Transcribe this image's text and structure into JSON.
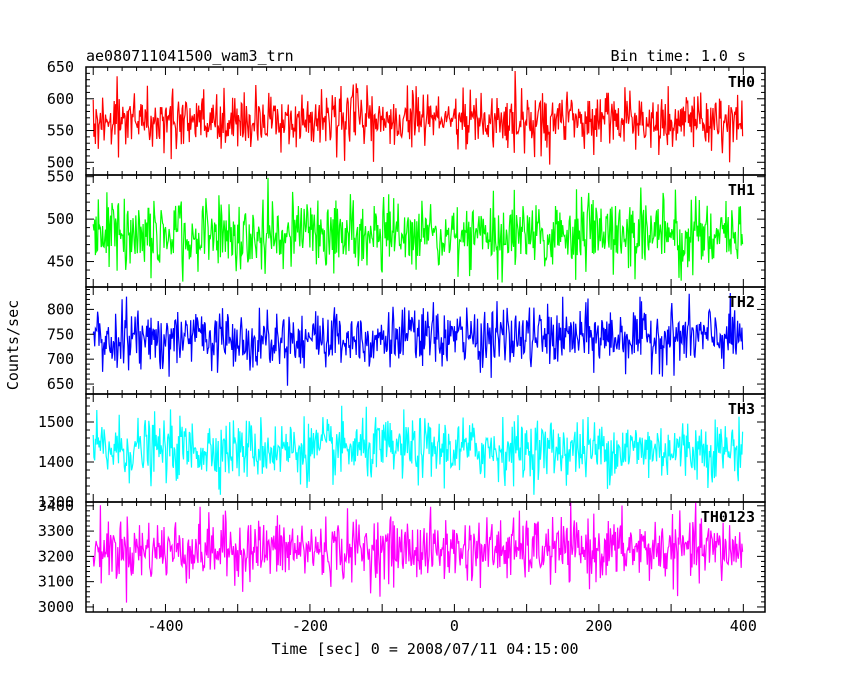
{
  "header": {
    "title": "ae080711041500_wam3_trn",
    "bin_time": "Bin time: 1.0 s"
  },
  "axes": {
    "ylabel": "Counts/sec",
    "xlabel": "Time [sec] 0 = 2008/07/11 04:15:00",
    "x_ticks": [
      "-400",
      "-200",
      "0",
      "200",
      "400"
    ]
  },
  "chart_data": {
    "type": "line",
    "x": {
      "range": [
        -510,
        400
      ],
      "min": -500,
      "max": 399,
      "step": 1,
      "unit": "sec"
    },
    "xlim": [
      -510,
      430
    ],
    "x_major_ticks": [
      -400,
      -200,
      0,
      200,
      400
    ],
    "panels": [
      {
        "name": "TH0",
        "color": "#ff0000",
        "ylim": [
          480,
          650
        ],
        "ticks": [
          500,
          550,
          600,
          650
        ],
        "mean": 566,
        "sigma": 22,
        "low": 495,
        "high": 650
      },
      {
        "name": "TH1",
        "color": "#00ff00",
        "ylim": [
          420,
          552
        ],
        "ticks": [
          450,
          500,
          550
        ],
        "mean": 482,
        "sigma": 21,
        "low": 425,
        "high": 552
      },
      {
        "name": "TH2",
        "color": "#0000ff",
        "ylim": [
          630,
          845
        ],
        "ticks": [
          650,
          700,
          750,
          800
        ],
        "mean": 744,
        "sigma": 30,
        "low": 640,
        "high": 845
      },
      {
        "name": "TH3",
        "color": "#00ffff",
        "ylim": [
          1300,
          1570
        ],
        "ticks": [
          1300,
          1400,
          1500
        ],
        "mean": 1432,
        "sigma": 38,
        "low": 1318,
        "high": 1570
      },
      {
        "name": "TH0123",
        "color": "#ff00ff",
        "ylim": [
          2980,
          3415
        ],
        "ticks": [
          3000,
          3100,
          3200,
          3300,
          3400
        ],
        "mean": 3227,
        "sigma": 62,
        "low": 2985,
        "high": 3415
      }
    ]
  }
}
